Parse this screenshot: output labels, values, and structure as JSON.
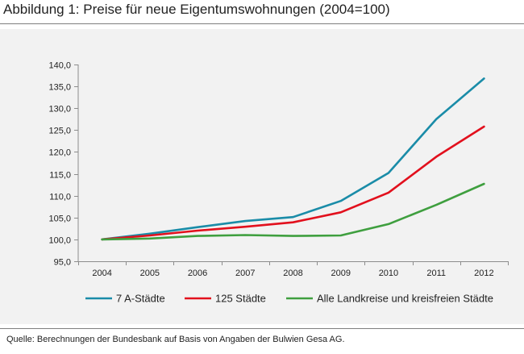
{
  "figure": {
    "title": "Abbildung 1: Preise für neue Eigentumswohnungen (2004=100)",
    "source": "Quelle: Berechnungen der Bundesbank auf Basis von Angaben der Bulwien Gesa AG."
  },
  "chart_data": {
    "type": "line",
    "title": "Abbildung 1: Preise für neue Eigentumswohnungen (2004=100)",
    "xlabel": "",
    "ylabel": "",
    "categories": [
      "2004",
      "2005",
      "2006",
      "2007",
      "2008",
      "2009",
      "2010",
      "2011",
      "2012"
    ],
    "ylim": [
      95,
      140
    ],
    "yticks": [
      95,
      100,
      105,
      110,
      115,
      120,
      125,
      130,
      135,
      140
    ],
    "ytick_labels": [
      "95,0",
      "100,0",
      "105,0",
      "110,0",
      "115,0",
      "120,0",
      "125,0",
      "130,0",
      "135,0",
      "140,0"
    ],
    "grid": false,
    "legend_position": "bottom",
    "series": [
      {
        "name": "7 A-Städte",
        "color": "#1a8ca8",
        "values": [
          100.0,
          101.3,
          102.8,
          104.2,
          105.1,
          108.8,
          115.2,
          127.5,
          136.8
        ]
      },
      {
        "name": "125 Städte",
        "color": "#e2101d",
        "values": [
          100.0,
          100.9,
          102.0,
          102.9,
          103.9,
          106.2,
          110.7,
          118.9,
          125.8
        ]
      },
      {
        "name": "Alle Landkreise und kreisfreien Städte",
        "color": "#3f9f3f",
        "values": [
          100.0,
          100.2,
          100.8,
          101.0,
          100.8,
          100.9,
          103.5,
          107.9,
          112.7
        ]
      }
    ]
  }
}
